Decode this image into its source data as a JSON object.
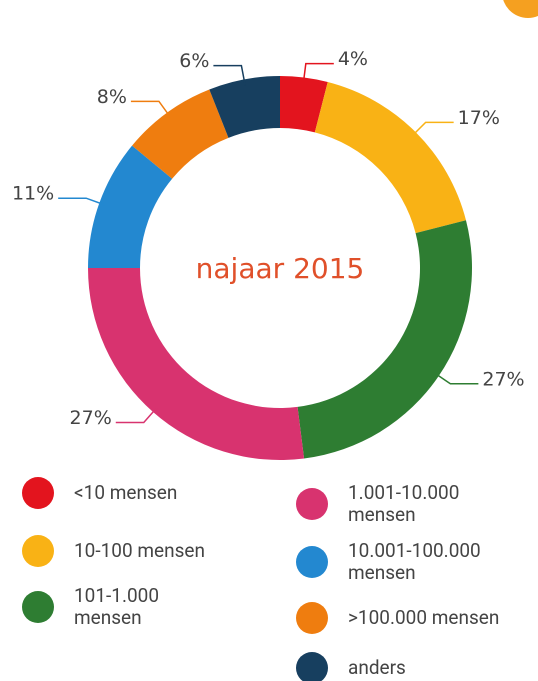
{
  "chart_data": {
    "type": "donut",
    "center_label": "najaar 2015",
    "categories": [
      "<10 mensen",
      "10-100 mensen",
      "101-1.000 mensen",
      "1.001-10.000 mensen",
      "10.001-100.000 mensen",
      ">100.000 mensen",
      "anders"
    ],
    "values": [
      4,
      17,
      27,
      27,
      11,
      8,
      6
    ],
    "value_labels": [
      "4%",
      "17%",
      "27%",
      "27%",
      "11%",
      "8%",
      "6%"
    ],
    "colors": [
      "#e3141e",
      "#f9b215",
      "#2e7d32",
      "#d8336f",
      "#2388d0",
      "#ef7d0f",
      "#173f5f"
    ]
  }
}
